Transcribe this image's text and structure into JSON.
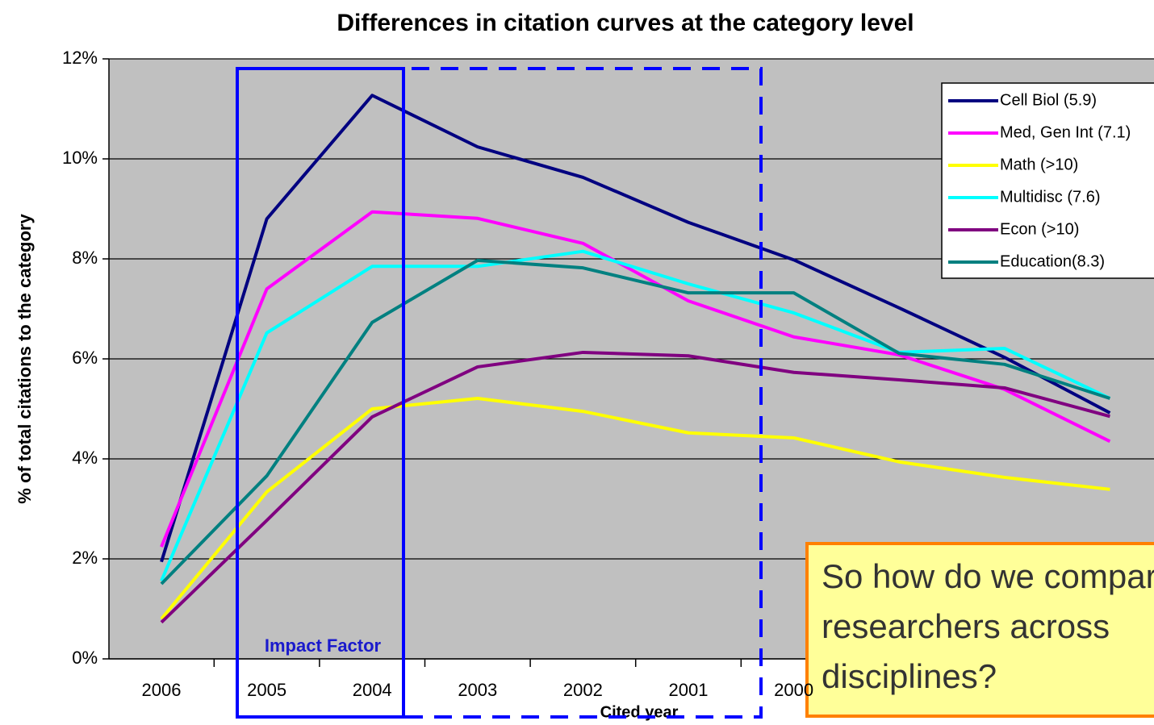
{
  "chart_data": {
    "type": "line",
    "title": "Differences in citation curves at the category level",
    "y_label": "% of total citations to the category",
    "x_label": "Cited year",
    "categories": [
      "2006",
      "2005",
      "2004",
      "2003",
      "2002",
      "2001",
      "2000",
      null,
      null,
      null
    ],
    "ylim": [
      0,
      12
    ],
    "yticks": [
      {
        "value": 0,
        "label": "0%"
      },
      {
        "value": 2,
        "label": "2%"
      },
      {
        "value": 4,
        "label": "4%"
      },
      {
        "value": 6,
        "label": "6%"
      },
      {
        "value": 8,
        "label": "8%"
      },
      {
        "value": 10,
        "label": "10%"
      },
      {
        "value": 12,
        "label": "12%"
      }
    ],
    "grid": true,
    "legend": "upper right",
    "series": [
      {
        "name": "Cell Biol (5.9)",
        "color": "#000080",
        "values": [
          1.94,
          8.8,
          11.27,
          10.24,
          9.63,
          8.73,
          7.98,
          7.02,
          6.03,
          4.92
        ]
      },
      {
        "name": "Med, Gen Int (7.1)",
        "color": "#ff00ff",
        "values": [
          2.24,
          7.4,
          8.94,
          8.81,
          8.31,
          7.16,
          6.44,
          6.08,
          5.39,
          4.35
        ]
      },
      {
        "name": "Math (>10)",
        "color": "#ffff00",
        "values": [
          0.8,
          3.34,
          5.0,
          5.21,
          4.95,
          4.52,
          4.42,
          3.94,
          3.63,
          3.39
        ]
      },
      {
        "name": "Multidisc (7.6)",
        "color": "#00ffff",
        "values": [
          1.56,
          6.52,
          7.85,
          7.85,
          8.15,
          7.5,
          6.92,
          6.13,
          6.21,
          5.21
        ]
      },
      {
        "name": "Econ (>10)",
        "color": "#800080",
        "values": [
          0.73,
          2.77,
          4.84,
          5.84,
          6.13,
          6.06,
          5.73,
          5.58,
          5.42,
          4.85
        ]
      },
      {
        "name": "Education(8.3)",
        "color": "#008080",
        "values": [
          1.5,
          3.66,
          6.73,
          7.97,
          7.82,
          7.32,
          7.32,
          6.11,
          5.89,
          5.21
        ]
      }
    ],
    "annotations": [
      "Impact Factor"
    ],
    "callout": [
      "So how do we compare",
      "researchers across",
      "disciplines?"
    ]
  }
}
